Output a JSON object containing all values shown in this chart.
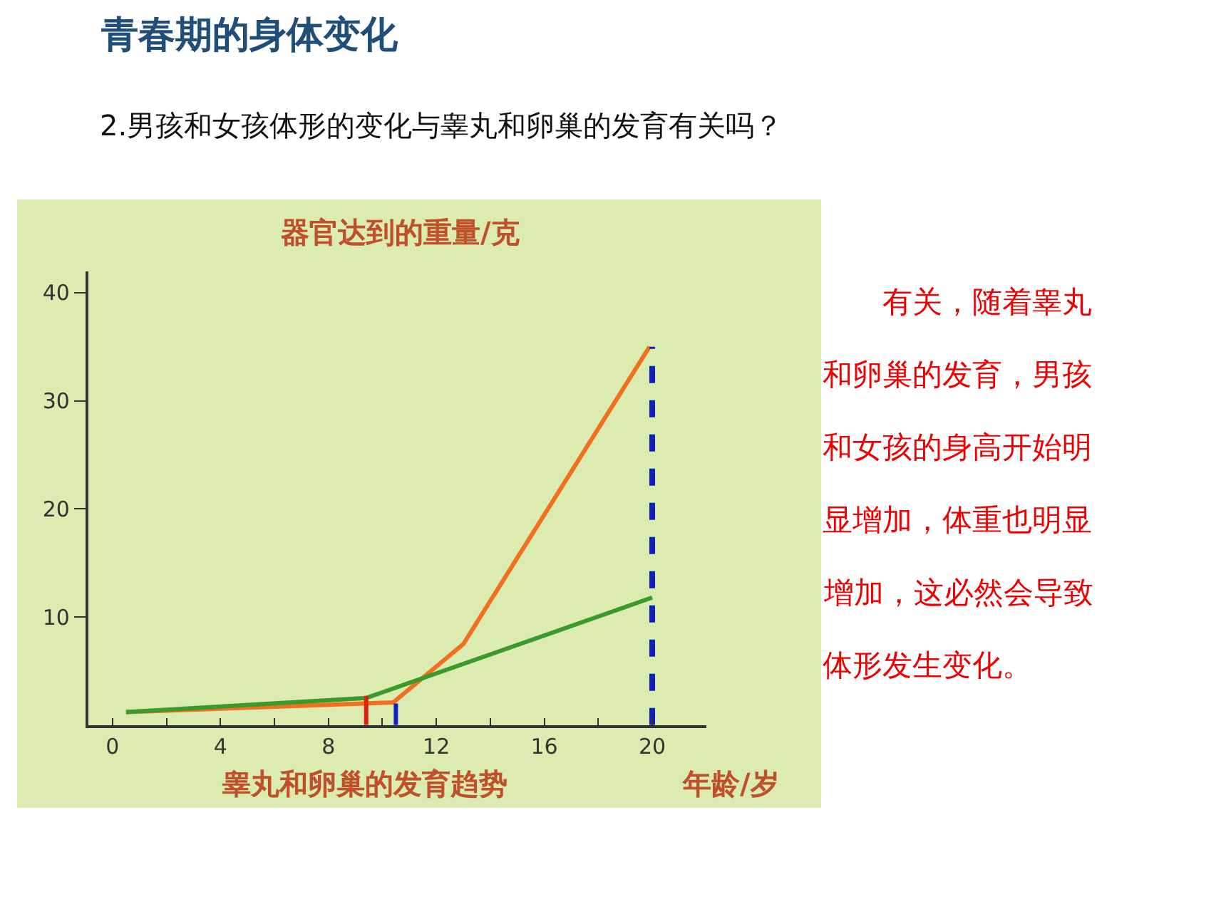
{
  "chart_data": {
    "type": "line",
    "title": "青春期的身体变化",
    "subtitle": "2.男孩和女孩体形的变化与睾丸和卵巢的发育有关吗？",
    "ylabel": "器官达到的重量/克",
    "xlabel": "年龄/岁",
    "annotations": [
      "睾丸和卵巢的发育趋势",
      "有关，随着睾丸和卵巢的发育，男孩和女孩的身高开始明显增加，体重也明显增加，这必然会导致体形发生变化。"
    ],
    "series": [
      {
        "color": "#f07020",
        "x": [
          0.5,
          10.4,
          13.0,
          19.9
        ],
        "values": [
          1.2,
          2.1,
          7.5,
          35
        ]
      },
      {
        "color": "#3c9a2c",
        "x": [
          0.5,
          9.4,
          20
        ],
        "values": [
          1.2,
          2.5,
          11.8
        ]
      },
      {
        "color": "#e02010",
        "x": [
          9.4,
          9.4
        ],
        "values": [
          0,
          2.7
        ]
      },
      {
        "color": "#1020c0",
        "x": [
          10.5,
          10.5
        ],
        "values": [
          0,
          2.0
        ]
      },
      {
        "color": "#1020c0",
        "x": [
          20,
          20
        ],
        "values": [
          0,
          35
        ],
        "line_style": "dashed"
      }
    ],
    "xlim": [
      -0.9,
      22
    ],
    "ylim": [
      0,
      42
    ],
    "xticks": [
      0,
      {
        "value": 2,
        "label": null
      },
      4,
      {
        "value": 6,
        "label": null
      },
      8,
      {
        "value": 10,
        "label": null
      },
      12,
      {
        "value": 14,
        "label": null
      },
      16,
      {
        "value": 18,
        "label": null
      },
      20
    ],
    "yticks": [
      10,
      20,
      30,
      40
    ],
    "grid": false,
    "marker": "none",
    "line_style": "solid"
  }
}
